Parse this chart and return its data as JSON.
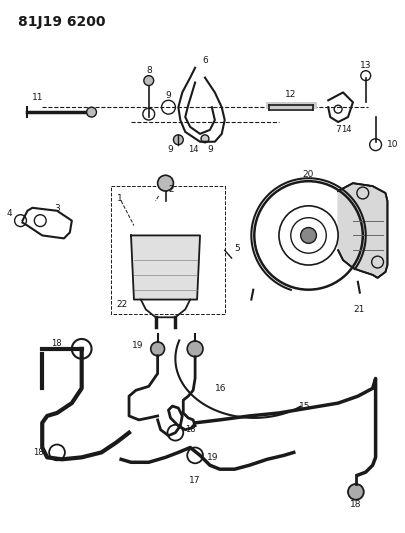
{
  "title": "81J19 6200",
  "bg_color": "#ffffff",
  "line_color": "#1a1a1a",
  "fig_width": 4.06,
  "fig_height": 5.33,
  "dpi": 100
}
